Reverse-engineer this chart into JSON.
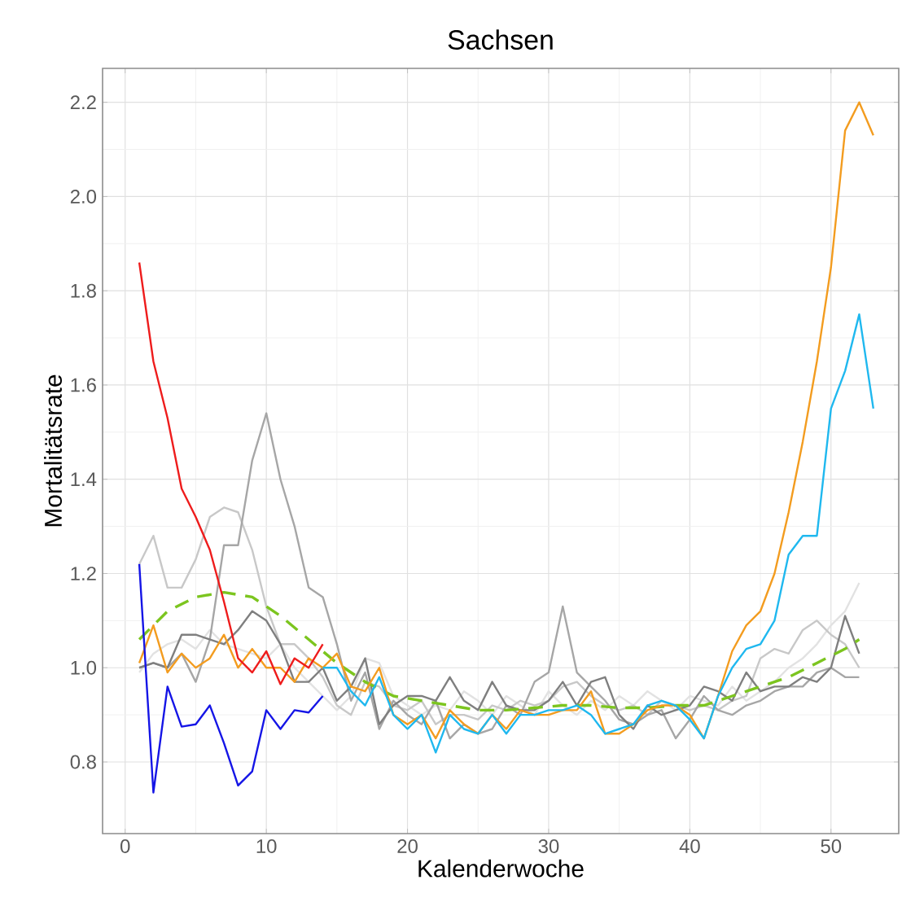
{
  "chart_data": {
    "type": "line",
    "title": "Sachsen",
    "xlabel": "Kalenderwoche",
    "ylabel": "Mortalitätsrate",
    "xlim": [
      -1.6,
      54.8
    ],
    "ylim": [
      0.648,
      2.272
    ],
    "xticks": [
      0,
      10,
      20,
      30,
      40,
      50
    ],
    "yticks": [
      0.8,
      {
        "value": 1.0,
        "label": "1.0"
      },
      1.2,
      1.4,
      1.6,
      1.8,
      {
        "value": 2.0,
        "label": "2.0"
      },
      2.2
    ],
    "grid": true,
    "series": [
      {
        "color": "#e2e2e2",
        "x": [
          1,
          2,
          3,
          4,
          5,
          6,
          7,
          8,
          9,
          10,
          11,
          12,
          13,
          14,
          15,
          16,
          17,
          18,
          19,
          20,
          21,
          22,
          23,
          24,
          25,
          26,
          27,
          28,
          29,
          30,
          31,
          32,
          33,
          34,
          35,
          36,
          37,
          38,
          39,
          40,
          41,
          42,
          43,
          44,
          45,
          46,
          47,
          48,
          49,
          50,
          51,
          52
        ],
        "values": [
          0.99,
          1.03,
          1.05,
          1.06,
          1.04,
          1.08,
          1.05,
          1.04,
          1.03,
          1.02,
          1.05,
          1.0,
          0.97,
          0.94,
          0.91,
          0.94,
          1.02,
          1.01,
          0.94,
          0.92,
          0.9,
          0.92,
          0.91,
          0.95,
          0.93,
          0.9,
          0.94,
          0.92,
          0.9,
          0.95,
          0.92,
          0.9,
          0.93,
          0.91,
          0.94,
          0.92,
          0.95,
          0.93,
          0.91,
          0.94,
          0.93,
          0.92,
          0.96,
          0.93,
          0.95,
          0.97,
          1.0,
          1.02,
          1.05,
          1.09,
          1.12,
          1.18
        ]
      },
      {
        "color": "#c8c8c8",
        "x": [
          1,
          2,
          3,
          4,
          5,
          6,
          7,
          8,
          9,
          10,
          11,
          12,
          13,
          14,
          15,
          16,
          17,
          18,
          19,
          20,
          21,
          22,
          23,
          24,
          25,
          26,
          27,
          28,
          29,
          30,
          31,
          32,
          33,
          34,
          35,
          36,
          37,
          38,
          39,
          40,
          41,
          42,
          43,
          44,
          45,
          46,
          47,
          48,
          49,
          50,
          51,
          52
        ],
        "values": [
          1.22,
          1.28,
          1.17,
          1.17,
          1.23,
          1.32,
          1.34,
          1.33,
          1.25,
          1.13,
          1.05,
          1.05,
          1.02,
          0.98,
          0.92,
          0.9,
          0.97,
          0.96,
          0.92,
          0.91,
          0.93,
          0.88,
          0.9,
          0.9,
          0.89,
          0.92,
          0.91,
          0.93,
          0.92,
          0.93,
          0.96,
          0.97,
          0.94,
          0.92,
          0.91,
          0.92,
          0.9,
          0.93,
          0.92,
          0.91,
          0.92,
          0.91,
          0.93,
          0.94,
          1.02,
          1.04,
          1.03,
          1.08,
          1.1,
          1.07,
          1.05,
          1.0
        ]
      },
      {
        "color": "#a6a6a6",
        "x": [
          1,
          2,
          3,
          4,
          5,
          6,
          7,
          8,
          9,
          10,
          11,
          12,
          13,
          14,
          15,
          16,
          17,
          18,
          19,
          20,
          21,
          22,
          23,
          24,
          25,
          26,
          27,
          28,
          29,
          30,
          31,
          32,
          33,
          34,
          35,
          36,
          37,
          38,
          39,
          40,
          41,
          42,
          43,
          44,
          45,
          46,
          47,
          48,
          49,
          50,
          51,
          52
        ],
        "values": [
          1.0,
          1.01,
          1.0,
          1.03,
          0.97,
          1.06,
          1.26,
          1.26,
          1.44,
          1.54,
          1.4,
          1.3,
          1.17,
          1.15,
          1.05,
          0.93,
          0.99,
          0.87,
          0.93,
          0.9,
          0.88,
          0.93,
          0.85,
          0.88,
          0.86,
          0.87,
          0.92,
          0.9,
          0.97,
          0.99,
          1.13,
          0.99,
          0.96,
          0.93,
          0.89,
          0.88,
          0.9,
          0.91,
          0.85,
          0.89,
          0.94,
          0.91,
          0.9,
          0.92,
          0.93,
          0.95,
          0.96,
          0.96,
          0.99,
          1.0,
          0.98,
          0.98
        ]
      },
      {
        "color": "#7f7f7f",
        "x": [
          1,
          2,
          3,
          4,
          5,
          6,
          7,
          8,
          9,
          10,
          11,
          12,
          13,
          14,
          15,
          16,
          17,
          18,
          19,
          20,
          21,
          22,
          23,
          24,
          25,
          26,
          27,
          28,
          29,
          30,
          31,
          32,
          33,
          34,
          35,
          36,
          37,
          38,
          39,
          40,
          41,
          42,
          43,
          44,
          45,
          46,
          47,
          48,
          49,
          50,
          51,
          52
        ],
        "values": [
          1.0,
          1.01,
          1.0,
          1.07,
          1.07,
          1.06,
          1.05,
          1.08,
          1.12,
          1.1,
          1.05,
          0.97,
          0.97,
          1.0,
          0.93,
          0.96,
          1.02,
          0.88,
          0.92,
          0.94,
          0.94,
          0.93,
          0.98,
          0.93,
          0.91,
          0.97,
          0.92,
          0.91,
          0.91,
          0.93,
          0.97,
          0.92,
          0.97,
          0.98,
          0.9,
          0.87,
          0.92,
          0.9,
          0.91,
          0.92,
          0.96,
          0.95,
          0.93,
          0.99,
          0.95,
          0.96,
          0.96,
          0.98,
          0.97,
          1.0,
          1.11,
          1.03
        ]
      },
      {
        "color": "#7cc51f",
        "line_style": "dashed",
        "x": [
          1,
          3,
          5,
          7,
          9,
          11,
          13,
          15,
          17,
          19,
          21,
          23,
          25,
          27,
          29,
          31,
          33,
          35,
          37,
          39,
          41,
          43,
          45,
          47,
          49,
          51,
          52
        ],
        "values": [
          1.06,
          1.12,
          1.15,
          1.16,
          1.15,
          1.11,
          1.06,
          1.01,
          0.97,
          0.94,
          0.93,
          0.92,
          0.91,
          0.91,
          0.915,
          0.92,
          0.92,
          0.915,
          0.915,
          0.92,
          0.92,
          0.94,
          0.96,
          0.98,
          1.01,
          1.04,
          1.06
        ]
      },
      {
        "color": "#f39c1f",
        "x": [
          1,
          2,
          3,
          4,
          5,
          6,
          7,
          8,
          9,
          10,
          11,
          12,
          13,
          14,
          15,
          16,
          17,
          18,
          19,
          20,
          21,
          22,
          23,
          24,
          25,
          26,
          27,
          28,
          29,
          30,
          31,
          32,
          33,
          34,
          35,
          36,
          37,
          38,
          39,
          40,
          41,
          42,
          43,
          44,
          45,
          46,
          47,
          48,
          49,
          50,
          51,
          52,
          53
        ],
        "values": [
          1.01,
          1.09,
          0.99,
          1.03,
          1.0,
          1.02,
          1.07,
          1.0,
          1.04,
          1.0,
          1.0,
          0.97,
          1.02,
          1.0,
          1.03,
          0.96,
          0.95,
          1.0,
          0.9,
          0.88,
          0.9,
          0.85,
          0.91,
          0.88,
          0.86,
          0.9,
          0.87,
          0.91,
          0.9,
          0.9,
          0.91,
          0.91,
          0.95,
          0.86,
          0.86,
          0.88,
          0.91,
          0.92,
          0.92,
          0.9,
          0.85,
          0.94,
          1.035,
          1.09,
          1.12,
          1.2,
          1.33,
          1.48,
          1.65,
          1.85,
          2.14,
          2.2,
          2.13
        ]
      },
      {
        "color": "#1fb8ef",
        "x": [
          14,
          15,
          16,
          17,
          18,
          19,
          20,
          21,
          22,
          23,
          24,
          25,
          26,
          27,
          28,
          29,
          30,
          31,
          32,
          33,
          34,
          35,
          36,
          37,
          38,
          39,
          40,
          41,
          42,
          43,
          44,
          45,
          46,
          47,
          48,
          49,
          50,
          51,
          52,
          53
        ],
        "values": [
          1.0,
          1.0,
          0.95,
          0.92,
          0.98,
          0.9,
          0.87,
          0.9,
          0.82,
          0.9,
          0.87,
          0.86,
          0.9,
          0.86,
          0.9,
          0.9,
          0.91,
          0.91,
          0.92,
          0.9,
          0.86,
          0.87,
          0.88,
          0.92,
          0.93,
          0.92,
          0.89,
          0.85,
          0.94,
          1.0,
          1.04,
          1.05,
          1.1,
          1.24,
          1.28,
          1.28,
          1.55,
          1.63,
          1.75,
          1.55
        ]
      },
      {
        "color": "#ee1c1c",
        "x": [
          1,
          2,
          3,
          4,
          5,
          6,
          7,
          8,
          9,
          10,
          11,
          12,
          13,
          14
        ],
        "values": [
          1.86,
          1.65,
          1.53,
          1.38,
          1.32,
          1.25,
          1.14,
          1.02,
          0.99,
          1.035,
          0.965,
          1.02,
          1.0,
          1.05
        ]
      },
      {
        "color": "#1515e6",
        "x": [
          1,
          2,
          3,
          4,
          5,
          6,
          7,
          8,
          9,
          10,
          11,
          12,
          13,
          14
        ],
        "values": [
          1.22,
          0.735,
          0.96,
          0.875,
          0.88,
          0.92,
          0.84,
          0.75,
          0.78,
          0.91,
          0.87,
          0.91,
          0.905,
          0.94
        ]
      }
    ]
  }
}
